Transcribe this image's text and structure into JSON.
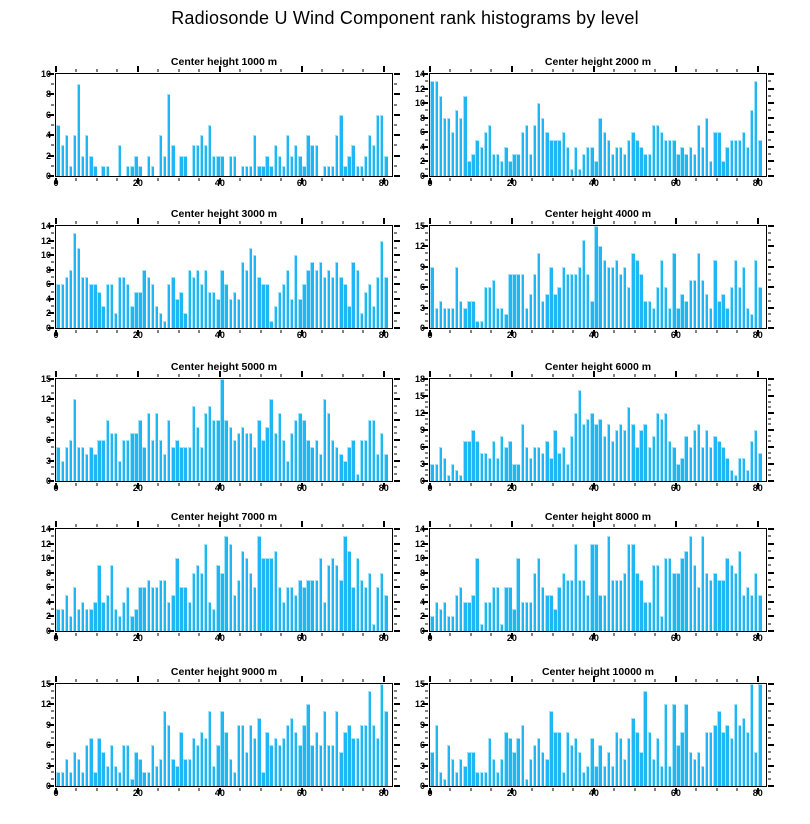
{
  "main_title": "Radiosonde U Wind Component rank histograms by level",
  "colors": {
    "bar_fill": "#1eb6f3",
    "bar_edge": "#9fe2fb",
    "axis": "#000000",
    "background": "#ffffff"
  },
  "chart_data": [
    {
      "type": "bar",
      "title": "Center height 1000 m",
      "level_m": 1000,
      "xlabel": "",
      "ylabel": "",
      "xlim": [
        0,
        82
      ],
      "xticks": [
        0,
        20,
        40,
        60,
        80
      ],
      "x_minor_step": 5,
      "ylim": [
        0,
        10
      ],
      "ytick_step": 2,
      "y_minor_step": 1,
      "values": [
        5,
        3,
        4,
        1,
        4,
        9,
        2,
        4,
        2,
        1,
        0,
        1,
        1,
        0,
        0,
        3,
        0,
        1,
        1,
        2,
        1,
        0,
        2,
        1,
        0,
        4,
        2,
        8,
        3,
        0,
        2,
        2,
        0,
        3,
        3,
        4,
        3,
        5,
        2,
        2,
        2,
        0,
        2,
        2,
        0,
        1,
        1,
        1,
        4,
        1,
        1,
        2,
        1,
        3,
        2,
        1,
        4,
        2,
        3,
        2,
        1,
        4,
        3,
        3,
        0,
        1,
        1,
        1,
        4,
        6,
        1,
        2,
        3,
        1,
        1,
        2,
        4,
        3,
        6,
        6,
        2
      ]
    },
    {
      "type": "bar",
      "title": "Center height 2000 m",
      "level_m": 2000,
      "xlabel": "",
      "ylabel": "",
      "xlim": [
        0,
        82
      ],
      "xticks": [
        0,
        20,
        40,
        60,
        80
      ],
      "x_minor_step": 5,
      "ylim": [
        0,
        14
      ],
      "ytick_step": 2,
      "y_minor_step": 1,
      "values": [
        13,
        13,
        11,
        8,
        8,
        6,
        9,
        8,
        11,
        2,
        3,
        5,
        4,
        6,
        7,
        3,
        3,
        2,
        4,
        2,
        3,
        3,
        6,
        7,
        3,
        7,
        10,
        8,
        6,
        5,
        5,
        5,
        6,
        4,
        1,
        4,
        1,
        3,
        4,
        4,
        2,
        8,
        6,
        5,
        3,
        4,
        4,
        3,
        5,
        6,
        5,
        4,
        3,
        3,
        7,
        7,
        6,
        5,
        5,
        5,
        3,
        4,
        3,
        4,
        3,
        7,
        4,
        8,
        2,
        6,
        6,
        2,
        4,
        5,
        5,
        5,
        6,
        4,
        9,
        13,
        5
      ]
    },
    {
      "type": "bar",
      "title": "Center height 3000 m",
      "level_m": 3000,
      "xlabel": "",
      "ylabel": "",
      "xlim": [
        0,
        82
      ],
      "xticks": [
        0,
        20,
        40,
        60,
        80
      ],
      "x_minor_step": 5,
      "ylim": [
        0,
        14
      ],
      "ytick_step": 2,
      "y_minor_step": 1,
      "values": [
        6,
        6,
        7,
        8,
        13,
        11,
        7,
        7,
        6,
        6,
        5,
        3,
        6,
        6,
        2,
        7,
        7,
        6,
        3,
        5,
        5,
        8,
        7,
        6,
        3,
        2,
        1,
        6,
        7,
        4,
        5,
        2,
        8,
        7,
        8,
        6,
        8,
        5,
        5,
        4,
        8,
        6,
        4,
        5,
        4,
        9,
        8,
        11,
        10,
        7,
        6,
        6,
        1,
        3,
        5,
        6,
        8,
        4,
        10,
        4,
        6,
        8,
        9,
        8,
        9,
        7,
        8,
        7,
        9,
        7,
        6,
        3,
        9,
        8,
        2,
        5,
        6,
        3,
        7,
        12,
        7
      ]
    },
    {
      "type": "bar",
      "title": "Center height 4000 m",
      "level_m": 4000,
      "xlabel": "",
      "ylabel": "",
      "xlim": [
        0,
        82
      ],
      "xticks": [
        0,
        20,
        40,
        60,
        80
      ],
      "x_minor_step": 5,
      "ylim": [
        0,
        15
      ],
      "ytick_step": 3,
      "y_minor_step": 1,
      "values": [
        9,
        3,
        4,
        3,
        3,
        3,
        9,
        4,
        3,
        4,
        4,
        1,
        1,
        6,
        6,
        7,
        3,
        3,
        2,
        8,
        8,
        8,
        8,
        3,
        5,
        8,
        11,
        4,
        5,
        9,
        5,
        6,
        9,
        8,
        8,
        8,
        9,
        13,
        8,
        4,
        15,
        12,
        10,
        9,
        9,
        10,
        8,
        9,
        6,
        11,
        10,
        8,
        4,
        4,
        3,
        6,
        10,
        6,
        3,
        11,
        3,
        5,
        4,
        7,
        7,
        11,
        7,
        5,
        3,
        10,
        4,
        5,
        3,
        6,
        10,
        6,
        9,
        3,
        2,
        10,
        6
      ]
    },
    {
      "type": "bar",
      "title": "Center height 5000 m",
      "level_m": 5000,
      "xlabel": "",
      "ylabel": "",
      "xlim": [
        0,
        82
      ],
      "xticks": [
        0,
        20,
        40,
        60,
        80
      ],
      "x_minor_step": 5,
      "ylim": [
        0,
        15
      ],
      "ytick_step": 3,
      "y_minor_step": 1,
      "values": [
        5,
        3,
        5,
        6,
        12,
        5,
        5,
        4,
        5,
        4,
        6,
        6,
        9,
        7,
        7,
        3,
        6,
        6,
        7,
        7,
        9,
        5,
        10,
        6,
        10,
        6,
        4,
        9,
        5,
        6,
        5,
        5,
        5,
        11,
        8,
        5,
        10,
        11,
        9,
        9,
        15,
        9,
        8,
        6,
        7,
        8,
        7,
        7,
        5,
        9,
        6,
        8,
        12,
        7,
        10,
        6,
        3,
        7,
        9,
        10,
        9,
        6,
        5,
        6,
        4,
        12,
        10,
        6,
        5,
        4,
        3,
        5,
        6,
        1,
        6,
        6,
        9,
        9,
        4,
        7,
        4
      ]
    },
    {
      "type": "bar",
      "title": "Center height 6000 m",
      "level_m": 6000,
      "xlabel": "",
      "ylabel": "",
      "xlim": [
        0,
        82
      ],
      "xticks": [
        0,
        20,
        40,
        60,
        80
      ],
      "x_minor_step": 5,
      "ylim": [
        0,
        18
      ],
      "ytick_step": 3,
      "y_minor_step": 1,
      "values": [
        3,
        3,
        6,
        4,
        1,
        3,
        2,
        1,
        7,
        7,
        9,
        7,
        5,
        5,
        4,
        7,
        4,
        8,
        6,
        7,
        3,
        3,
        10,
        6,
        4,
        6,
        6,
        5,
        7,
        4,
        9,
        5,
        6,
        3,
        8,
        12,
        16,
        10,
        11,
        12,
        10,
        11,
        8,
        10,
        7,
        9,
        10,
        9,
        13,
        10,
        6,
        9,
        10,
        6,
        8,
        12,
        11,
        12,
        7,
        6,
        3,
        4,
        8,
        6,
        9,
        10,
        6,
        9,
        6,
        8,
        7,
        6,
        4,
        2,
        1,
        4,
        4,
        2,
        7,
        9,
        5
      ]
    },
    {
      "type": "bar",
      "title": "Center height 7000 m",
      "level_m": 7000,
      "xlabel": "",
      "ylabel": "",
      "xlim": [
        0,
        82
      ],
      "xticks": [
        0,
        20,
        40,
        60,
        80
      ],
      "x_minor_step": 5,
      "ylim": [
        0,
        14
      ],
      "ytick_step": 2,
      "y_minor_step": 1,
      "values": [
        3,
        3,
        5,
        2,
        6,
        3,
        4,
        3,
        3,
        4,
        9,
        4,
        5,
        9,
        3,
        2,
        4,
        6,
        2,
        3,
        6,
        6,
        7,
        6,
        6,
        7,
        7,
        4,
        5,
        10,
        6,
        6,
        4,
        8,
        9,
        8,
        12,
        4,
        3,
        9,
        8,
        13,
        12,
        5,
        7,
        11,
        10,
        8,
        6,
        13,
        10,
        10,
        10,
        11,
        6,
        4,
        6,
        6,
        5,
        7,
        6,
        7,
        7,
        7,
        10,
        4,
        9,
        10,
        9,
        7,
        13,
        11,
        6,
        10,
        7,
        6,
        8,
        1,
        6,
        8,
        5
      ]
    },
    {
      "type": "bar",
      "title": "Center height 8000 m",
      "level_m": 8000,
      "xlabel": "",
      "ylabel": "",
      "xlim": [
        0,
        82
      ],
      "xticks": [
        0,
        20,
        40,
        60,
        80
      ],
      "x_minor_step": 5,
      "ylim": [
        0,
        14
      ],
      "ytick_step": 2,
      "y_minor_step": 1,
      "values": [
        2,
        4,
        3,
        4,
        2,
        2,
        5,
        6,
        4,
        4,
        5,
        10,
        1,
        4,
        4,
        6,
        6,
        1,
        6,
        6,
        3,
        10,
        4,
        4,
        4,
        8,
        10,
        6,
        5,
        5,
        3,
        6,
        8,
        7,
        7,
        12,
        7,
        7,
        5,
        12,
        12,
        5,
        5,
        13,
        7,
        7,
        7,
        8,
        12,
        12,
        8,
        7,
        4,
        4,
        9,
        9,
        2,
        10,
        10,
        8,
        8,
        10,
        11,
        13,
        9,
        6,
        13,
        8,
        7,
        8,
        7,
        7,
        10,
        9,
        8,
        11,
        5,
        6,
        5,
        8,
        5
      ]
    },
    {
      "type": "bar",
      "title": "Center height 9000 m",
      "level_m": 9000,
      "xlabel": "",
      "ylabel": "",
      "xlim": [
        0,
        82
      ],
      "xticks": [
        0,
        20,
        40,
        60,
        80
      ],
      "x_minor_step": 5,
      "ylim": [
        0,
        15
      ],
      "ytick_step": 3,
      "y_minor_step": 1,
      "values": [
        2,
        2,
        4,
        2,
        5,
        4,
        2,
        6,
        7,
        2,
        7,
        5,
        3,
        6,
        3,
        2,
        6,
        6,
        1,
        5,
        4,
        2,
        2,
        6,
        3,
        4,
        11,
        9,
        4,
        3,
        8,
        4,
        4,
        7,
        6,
        8,
        7,
        11,
        3,
        6,
        11,
        8,
        4,
        2,
        9,
        9,
        5,
        9,
        7,
        10,
        2,
        8,
        6,
        7,
        6,
        7,
        9,
        10,
        8,
        6,
        9,
        12,
        6,
        8,
        6,
        11,
        6,
        6,
        11,
        5,
        8,
        9,
        7,
        7,
        9,
        9,
        14,
        9,
        7,
        15,
        11
      ]
    },
    {
      "type": "bar",
      "title": "Center height 10000 m",
      "level_m": 10000,
      "xlabel": "",
      "ylabel": "",
      "xlim": [
        0,
        82
      ],
      "xticks": [
        0,
        20,
        40,
        60,
        80
      ],
      "x_minor_step": 5,
      "ylim": [
        0,
        15
      ],
      "ytick_step": 3,
      "y_minor_step": 1,
      "values": [
        5,
        9,
        2,
        1,
        6,
        4,
        2,
        4,
        3,
        5,
        5,
        2,
        2,
        2,
        7,
        4,
        2,
        4,
        8,
        7,
        5,
        7,
        9,
        1,
        4,
        6,
        7,
        5,
        4,
        11,
        8,
        8,
        2,
        8,
        6,
        7,
        5,
        2,
        3,
        7,
        3,
        6,
        3,
        5,
        3,
        8,
        7,
        4,
        7,
        10,
        8,
        5,
        14,
        8,
        4,
        7,
        3,
        12,
        3,
        12,
        6,
        8,
        12,
        5,
        4,
        5,
        3,
        8,
        8,
        9,
        11,
        8,
        9,
        7,
        12,
        9,
        10,
        8,
        15,
        5,
        15
      ]
    }
  ]
}
